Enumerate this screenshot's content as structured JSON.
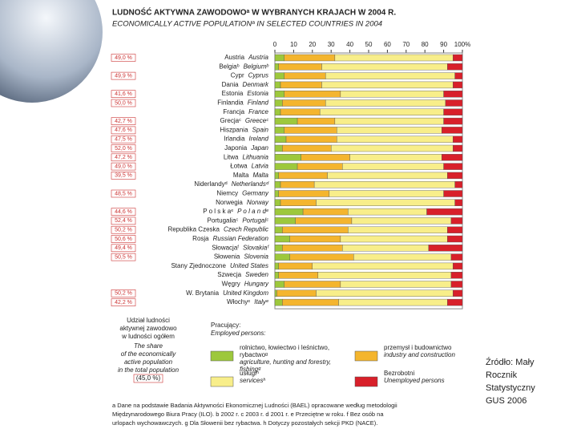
{
  "chart_data": {
    "type": "bar",
    "orientation": "horizontal",
    "stacked": true,
    "title": "LUDNOŚĆ AKTYWNA ZAWODOWOᵃ W WYBRANYCH KRAJACH W 2004 R.",
    "subtitle": "ECONOMICALLY ACTIVE POPULATIONᵃ IN SELECTED COUNTRIES IN 2004",
    "categories": [
      "Austria",
      "Belgiaᵇ",
      "Cypr",
      "Dania",
      "Estonia",
      "Finlandia",
      "Francja",
      "Grecjaᶜ",
      "Hiszpania",
      "Irlandia",
      "Japonia",
      "Litwa",
      "Łotwa",
      "Malta",
      "Niderlandyᵈ",
      "Niemcy",
      "Norwegia",
      "P o l s k aᵉ",
      "Portugaliaᶜ",
      "Republika Czeska",
      "Rosja",
      "Słowacjaᶠ",
      "Słowenia",
      "Stany Zjednoczone",
      "Szwecja",
      "Węgry",
      "W. Brytania",
      "Włochyᵉ"
    ],
    "categories_en": [
      "Austria",
      "Belgiumᵇ",
      "Cyprus",
      "Denmark",
      "Estonia",
      "Finland",
      "France",
      "Greeceᶜ",
      "Spain",
      "Ireland",
      "Japan",
      "Lithuania",
      "Latvia",
      "Malta",
      "Netherlandsᵈ",
      "Germany",
      "Norway",
      "P o l a n dᵉ",
      "Portugalᶜ",
      "Czech Republic",
      "Russian Federation",
      "Slovakiaᶠ",
      "Slovenia",
      "United States",
      "Sweden",
      "Hungary",
      "United Kingdom",
      "Italyᵉ"
    ],
    "share": {
      "values": [
        49.0,
        null,
        49.9,
        null,
        41.6,
        50.0,
        null,
        42.7,
        47.6,
        47.5,
        52.0,
        47.2,
        49.0,
        39.5,
        null,
        48.5,
        null,
        44.6,
        52.4,
        50.2,
        50.6,
        49.4,
        50.5,
        null,
        null,
        null,
        50.2,
        42.2
      ],
      "value_labels": [
        "49,0 %",
        null,
        "49,9 %",
        null,
        "41,6 %",
        "50,0 %",
        null,
        "42,7 %",
        "47,6 %",
        "47,5 %",
        "52,0 %",
        "47,2 %",
        "49,0 %",
        "39,5 %",
        null,
        "48,5 %",
        null,
        "44,6 %",
        "52,4 %",
        "50,2 %",
        "50,6 %",
        "49,4 %",
        "50,5 %",
        null,
        null,
        null,
        "50,2 %",
        "42,2 %"
      ]
    },
    "series": [
      {
        "name": [
          "rolnictwo, łowiectwo i leśnictwo,",
          "rybactwoᵍ"
        ],
        "name_en": [
          "agriculture, hunting and forestry,",
          "fishingᵍ"
        ],
        "color": "#9dc83c",
        "values": [
          5,
          2,
          5,
          3,
          5,
          4,
          3,
          12,
          5,
          6,
          4,
          14,
          12,
          2,
          3,
          2,
          3,
          15,
          11,
          4,
          8,
          4,
          8,
          2,
          2,
          5,
          1,
          4
        ]
      },
      {
        "name": [
          "przemysł i budownictwo"
        ],
        "name_en": [
          "industry and construction"
        ],
        "color": "#f4b52e",
        "values": [
          27,
          23,
          22,
          22,
          30,
          23,
          21,
          20,
          28,
          27,
          26,
          26,
          24,
          26,
          18,
          27,
          19,
          24,
          30,
          35,
          27,
          32,
          34,
          18,
          21,
          30,
          21,
          30
        ]
      },
      {
        "name": [
          "usługiʰ"
        ],
        "name_en": [
          "servicesʰ"
        ],
        "color": "#f8ee8a",
        "values": [
          63,
          67,
          69,
          70,
          55,
          64,
          66,
          58,
          56,
          62,
          65,
          49,
          54,
          64,
          75,
          61,
          74,
          42,
          53,
          53,
          57,
          46,
          52,
          75,
          71,
          59,
          73,
          58
        ]
      },
      {
        "name": [
          "Bezrobotni"
        ],
        "name_en": [
          "Unemployed persons"
        ],
        "color": "#d8202a",
        "values": [
          5,
          8,
          4,
          5,
          10,
          9,
          10,
          10,
          11,
          5,
          5,
          11,
          10,
          8,
          4,
          10,
          4,
          19,
          6,
          8,
          8,
          18,
          6,
          5,
          6,
          6,
          5,
          8
        ]
      }
    ],
    "xlim": [
      0,
      100
    ],
    "xticks": [
      0,
      10,
      20,
      30,
      40,
      50,
      60,
      70,
      80,
      90,
      {
        "value": 100,
        "label": "100%"
      }
    ],
    "share_note": [
      "Udział ludności",
      "aktywnej zawodowo",
      "w ludności ogółem"
    ],
    "share_note_en": [
      "The share",
      "of the economically",
      "active population",
      "in the total population"
    ],
    "share_example": "(45,0 %)",
    "legend_heading": "Pracujący:",
    "legend_heading_en": "Employed persons:",
    "footnote": [
      "a Dane na podstawie Badania Aktywności Ekonomicznej Ludności (BAEL) opracowane według metodologii",
      "Międzynarodowego Biura Pracy (ILO). b 2002 r. c 2003 r. d 2001 r. e Przeciętne w roku. f Bez osób na",
      "urlopach wychowawczych. g Dla Słowenii bez rybactwa. h Dotyczy pozostałych sekcji PKD (NACE)."
    ],
    "source": [
      "Źródło: Mały",
      "Rocznik",
      "Statystyczny",
      "GUS 2006"
    ]
  }
}
